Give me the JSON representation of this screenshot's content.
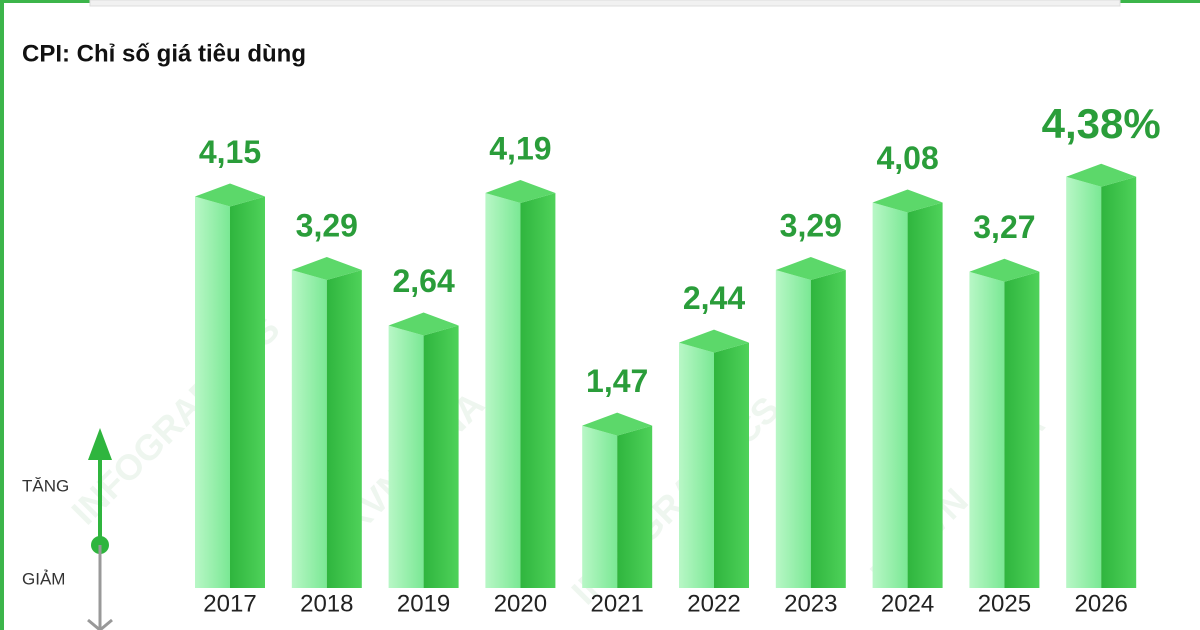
{
  "chart_data": {
    "type": "bar3d",
    "title": "CPI: Chỉ số giá tiêu dùng",
    "categories": [
      "2017",
      "2018",
      "2019",
      "2020",
      "2021",
      "2022",
      "2023",
      "2024",
      "2025",
      "2026"
    ],
    "values": [
      4.15,
      3.29,
      2.64,
      4.19,
      1.47,
      2.44,
      3.29,
      4.08,
      3.27,
      4.38
    ],
    "value_labels": [
      "4,15",
      "3,29",
      "2,64",
      "4,19",
      "1,47",
      "2,44",
      "3,29",
      "4,08",
      "3,27",
      "4,38%"
    ],
    "ylim": [
      -0.43,
      4.6
    ],
    "color": "#2fb53e",
    "legend_up": "TĂNG",
    "legend_down": "GIẢM",
    "watermarks": [
      "INFOGRAPHICS",
      "TTXVN - VNA"
    ]
  }
}
